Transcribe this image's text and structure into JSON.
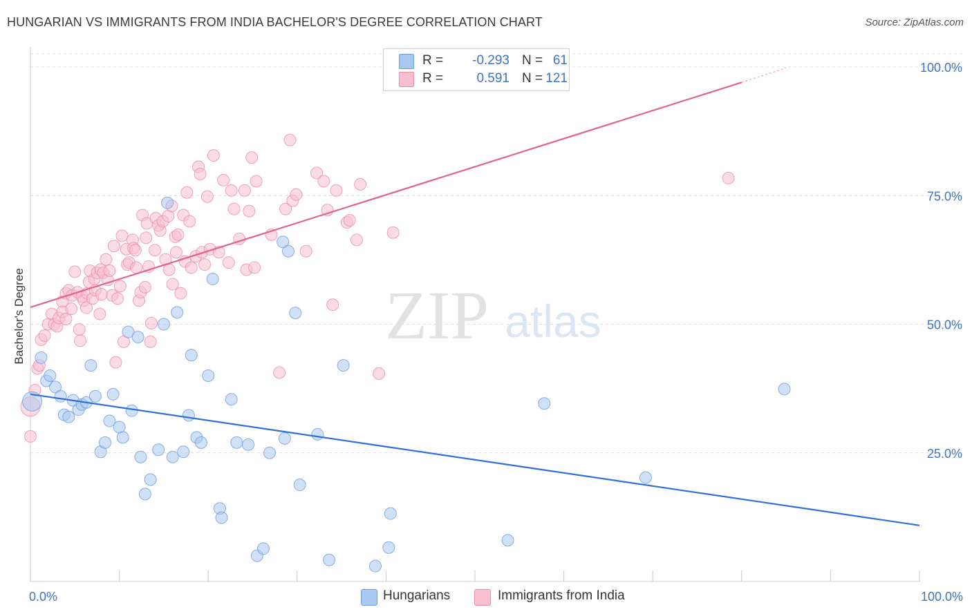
{
  "header": {
    "title": "HUNGARIAN VS IMMIGRANTS FROM INDIA BACHELOR'S DEGREE CORRELATION CHART",
    "source": "Source: ZipAtlas.com"
  },
  "legend": {
    "rows": [
      {
        "r_label": "R =",
        "r_value": "-0.293",
        "n_label": "N =",
        "n_value": "61",
        "color": "#a8c8f0",
        "border": "#6b9ee0"
      },
      {
        "r_label": "R =",
        "r_value": "0.591",
        "n_label": "N =",
        "n_value": "121",
        "color": "#f8bfd0",
        "border": "#e88aa8"
      }
    ]
  },
  "watermark": {
    "zip": "ZIP",
    "atlas": "atlas"
  },
  "colors": {
    "blue_fill": "#a9c9f0",
    "blue_stroke": "#6b9ee0",
    "blue_line": "#2f6fd6",
    "pink_fill": "#f8c0d0",
    "pink_stroke": "#ea8dab",
    "pink_line": "#e0638e",
    "grid": "#dcdcdc",
    "axis_text": "#3d74c6"
  },
  "bottom_legend": [
    {
      "label": "Hungarians",
      "color": "#a9c9f0",
      "border": "#6b9ee0"
    },
    {
      "label": "Immigrants from India",
      "color": "#f8c0d0",
      "border": "#ea8dab"
    }
  ],
  "chart_data": {
    "type": "scatter",
    "title": "HUNGARIAN VS IMMIGRANTS FROM INDIA BACHELOR'S DEGREE CORRELATION CHART",
    "xlabel": "",
    "ylabel": "Bachelor's Degree",
    "xlim": [
      0,
      100
    ],
    "ylim": [
      0,
      100
    ],
    "x_tick_labels": [
      "0.0%",
      "100.0%"
    ],
    "y_tick_labels": [
      "100.0%",
      "75.0%",
      "50.0%",
      "25.0%"
    ],
    "y_ticks": [
      100,
      75,
      50,
      25
    ],
    "grid": true,
    "series": [
      {
        "name": "Hungarians",
        "r": -0.293,
        "n": 61,
        "trend": {
          "x": [
            0,
            100
          ],
          "y": [
            36.4,
            10.9
          ]
        },
        "points": [
          [
            0.2,
            35.0,
            2
          ],
          [
            1.2,
            43.5,
            1
          ],
          [
            1.8,
            39.0,
            1
          ],
          [
            2.2,
            40.0,
            1
          ],
          [
            2.8,
            37.8,
            1
          ],
          [
            3.4,
            36.0,
            1
          ],
          [
            3.8,
            32.4,
            1
          ],
          [
            4.3,
            32.0,
            1
          ],
          [
            4.8,
            35.2,
            1
          ],
          [
            5.4,
            33.4,
            1
          ],
          [
            5.8,
            34.4,
            1
          ],
          [
            6.3,
            34.8,
            1
          ],
          [
            6.8,
            42.0,
            1
          ],
          [
            7.3,
            36.0,
            1
          ],
          [
            7.9,
            25.2,
            1
          ],
          [
            8.4,
            27.0,
            1
          ],
          [
            8.9,
            31.2,
            1
          ],
          [
            9.3,
            36.4,
            1
          ],
          [
            10.0,
            30.0,
            1
          ],
          [
            10.4,
            28.0,
            1
          ],
          [
            11.4,
            33.2,
            1
          ],
          [
            11.0,
            48.5,
            1
          ],
          [
            12.1,
            47.5,
            1
          ],
          [
            12.4,
            24.2,
            1
          ],
          [
            12.9,
            17.0,
            1
          ],
          [
            13.5,
            19.8,
            1
          ],
          [
            14.4,
            25.6,
            1
          ],
          [
            15.0,
            50.0,
            1
          ],
          [
            15.4,
            73.6,
            1
          ],
          [
            16.0,
            24.2,
            1
          ],
          [
            16.5,
            52.3,
            1
          ],
          [
            17.2,
            25.2,
            1
          ],
          [
            17.8,
            32.3,
            1
          ],
          [
            18.1,
            44.0,
            1
          ],
          [
            18.7,
            28.0,
            1
          ],
          [
            19.2,
            27.0,
            1
          ],
          [
            20.0,
            40.0,
            1
          ],
          [
            20.5,
            58.8,
            1
          ],
          [
            21.3,
            14.2,
            1
          ],
          [
            21.5,
            12.4,
            1
          ],
          [
            22.6,
            35.4,
            1
          ],
          [
            23.2,
            27.0,
            1
          ],
          [
            24.5,
            26.6,
            1
          ],
          [
            25.5,
            5.0,
            1
          ],
          [
            26.2,
            6.4,
            1
          ],
          [
            26.9,
            25.0,
            1
          ],
          [
            28.4,
            66.0,
            1
          ],
          [
            28.6,
            27.8,
            1
          ],
          [
            29.0,
            64.2,
            1
          ],
          [
            29.8,
            52.2,
            1
          ],
          [
            30.3,
            18.8,
            1
          ],
          [
            32.3,
            28.6,
            1
          ],
          [
            33.6,
            4.2,
            1
          ],
          [
            35.2,
            42.0,
            1
          ],
          [
            38.8,
            3.0,
            1
          ],
          [
            40.3,
            6.6,
            1
          ],
          [
            40.5,
            13.2,
            1
          ],
          [
            53.7,
            8.0,
            1
          ],
          [
            57.8,
            34.6,
            1
          ],
          [
            69.2,
            20.2,
            1
          ],
          [
            84.8,
            37.4,
            1
          ]
        ]
      },
      {
        "name": "Immigrants from India",
        "r": 0.591,
        "n": 121,
        "trend": {
          "x": [
            0,
            80
          ],
          "y": [
            53.3,
            97.0
          ]
        },
        "trend_dashed": {
          "x": [
            80,
            85
          ],
          "y": [
            97.0,
            99.8
          ]
        },
        "points": [
          [
            0.0,
            34.0,
            2
          ],
          [
            0.0,
            28.2,
            1
          ],
          [
            0.5,
            37.2,
            1
          ],
          [
            0.8,
            41.4,
            1
          ],
          [
            1.0,
            42.0,
            1
          ],
          [
            1.2,
            47.0,
            1
          ],
          [
            1.6,
            47.8,
            1
          ],
          [
            2.0,
            50.0,
            1
          ],
          [
            2.4,
            52.0,
            1
          ],
          [
            2.7,
            50.0,
            1
          ],
          [
            3.0,
            49.6,
            1
          ],
          [
            3.2,
            51.2,
            1
          ],
          [
            3.6,
            54.4,
            1
          ],
          [
            3.6,
            52.4,
            1
          ],
          [
            4.0,
            56.0,
            1
          ],
          [
            4.0,
            51.0,
            1
          ],
          [
            4.3,
            56.6,
            1
          ],
          [
            4.6,
            53.0,
            1
          ],
          [
            4.7,
            55.6,
            1
          ],
          [
            5.0,
            60.2,
            1
          ],
          [
            5.3,
            56.2,
            1
          ],
          [
            5.5,
            49.0,
            1
          ],
          [
            5.6,
            46.8,
            1
          ],
          [
            5.8,
            55.4,
            1
          ],
          [
            6.0,
            54.6,
            1
          ],
          [
            6.3,
            53.2,
            1
          ],
          [
            6.4,
            56.0,
            1
          ],
          [
            6.6,
            58.2,
            1
          ],
          [
            6.7,
            60.4,
            1
          ],
          [
            7.0,
            55.0,
            1
          ],
          [
            7.2,
            58.8,
            1
          ],
          [
            7.3,
            56.6,
            1
          ],
          [
            7.5,
            60.0,
            1
          ],
          [
            7.8,
            52.0,
            1
          ],
          [
            7.9,
            60.6,
            1
          ],
          [
            8.0,
            55.8,
            1
          ],
          [
            8.2,
            60.0,
            1
          ],
          [
            8.5,
            62.6,
            1
          ],
          [
            8.7,
            58.6,
            1
          ],
          [
            8.9,
            60.4,
            1
          ],
          [
            9.2,
            55.6,
            1
          ],
          [
            9.4,
            65.2,
            1
          ],
          [
            9.6,
            42.6,
            1
          ],
          [
            9.8,
            55.0,
            1
          ],
          [
            10.1,
            57.4,
            1
          ],
          [
            10.3,
            67.2,
            1
          ],
          [
            10.5,
            46.6,
            1
          ],
          [
            10.8,
            64.6,
            1
          ],
          [
            10.9,
            61.6,
            1
          ],
          [
            11.1,
            62.0,
            1
          ],
          [
            11.5,
            66.4,
            1
          ],
          [
            11.6,
            64.8,
            1
          ],
          [
            11.8,
            64.4,
            1
          ],
          [
            11.9,
            61.0,
            1
          ],
          [
            12.2,
            54.6,
            1
          ],
          [
            12.4,
            56.2,
            1
          ],
          [
            12.6,
            71.2,
            1
          ],
          [
            12.9,
            57.2,
            1
          ],
          [
            13.0,
            66.8,
            1
          ],
          [
            13.1,
            69.6,
            1
          ],
          [
            13.3,
            61.2,
            1
          ],
          [
            13.5,
            46.6,
            1
          ],
          [
            13.6,
            50.2,
            1
          ],
          [
            14.0,
            64.4,
            1
          ],
          [
            14.1,
            70.6,
            1
          ],
          [
            14.4,
            69.2,
            1
          ],
          [
            14.6,
            68.2,
            1
          ],
          [
            14.9,
            70.0,
            1
          ],
          [
            15.2,
            62.6,
            1
          ],
          [
            15.5,
            71.0,
            1
          ],
          [
            15.6,
            60.6,
            1
          ],
          [
            15.9,
            73.0,
            1
          ],
          [
            16.0,
            57.8,
            1
          ],
          [
            16.3,
            67.0,
            1
          ],
          [
            16.4,
            64.0,
            1
          ],
          [
            16.6,
            67.4,
            1
          ],
          [
            16.9,
            56.0,
            1
          ],
          [
            17.2,
            71.2,
            1
          ],
          [
            17.4,
            62.2,
            1
          ],
          [
            17.6,
            75.6,
            1
          ],
          [
            17.9,
            70.0,
            1
          ],
          [
            18.1,
            61.0,
            1
          ],
          [
            18.6,
            63.2,
            1
          ],
          [
            18.9,
            80.6,
            1
          ],
          [
            19.1,
            79.2,
            1
          ],
          [
            19.3,
            64.0,
            1
          ],
          [
            19.6,
            61.6,
            1
          ],
          [
            19.9,
            74.8,
            1
          ],
          [
            20.2,
            64.6,
            1
          ],
          [
            20.6,
            82.8,
            1
          ],
          [
            21.2,
            64.0,
            1
          ],
          [
            21.7,
            78.0,
            1
          ],
          [
            22.3,
            62.0,
            1
          ],
          [
            22.6,
            76.0,
            1
          ],
          [
            22.9,
            72.4,
            1
          ],
          [
            23.5,
            66.6,
            1
          ],
          [
            24.1,
            76.0,
            1
          ],
          [
            24.3,
            60.6,
            1
          ],
          [
            24.6,
            72.0,
            1
          ],
          [
            24.9,
            82.4,
            1
          ],
          [
            25.2,
            61.0,
            1
          ],
          [
            25.4,
            77.8,
            1
          ],
          [
            27.1,
            67.4,
            1
          ],
          [
            28.0,
            40.6,
            1
          ],
          [
            28.7,
            72.4,
            1
          ],
          [
            29.5,
            74.0,
            1
          ],
          [
            29.9,
            75.2,
            1
          ],
          [
            31.0,
            64.2,
            1
          ],
          [
            29.2,
            85.8,
            1
          ],
          [
            32.2,
            79.4,
            1
          ],
          [
            33.0,
            77.8,
            1
          ],
          [
            33.4,
            72.2,
            1
          ],
          [
            34.0,
            53.8,
            1
          ],
          [
            34.4,
            76.0,
            1
          ],
          [
            35.6,
            69.8,
            1
          ],
          [
            35.9,
            70.2,
            1
          ],
          [
            36.7,
            66.4,
            1
          ],
          [
            37.1,
            77.2,
            1
          ],
          [
            39.2,
            40.4,
            1
          ],
          [
            40.8,
            67.8,
            1
          ],
          [
            78.5,
            78.4,
            1
          ]
        ]
      }
    ]
  }
}
